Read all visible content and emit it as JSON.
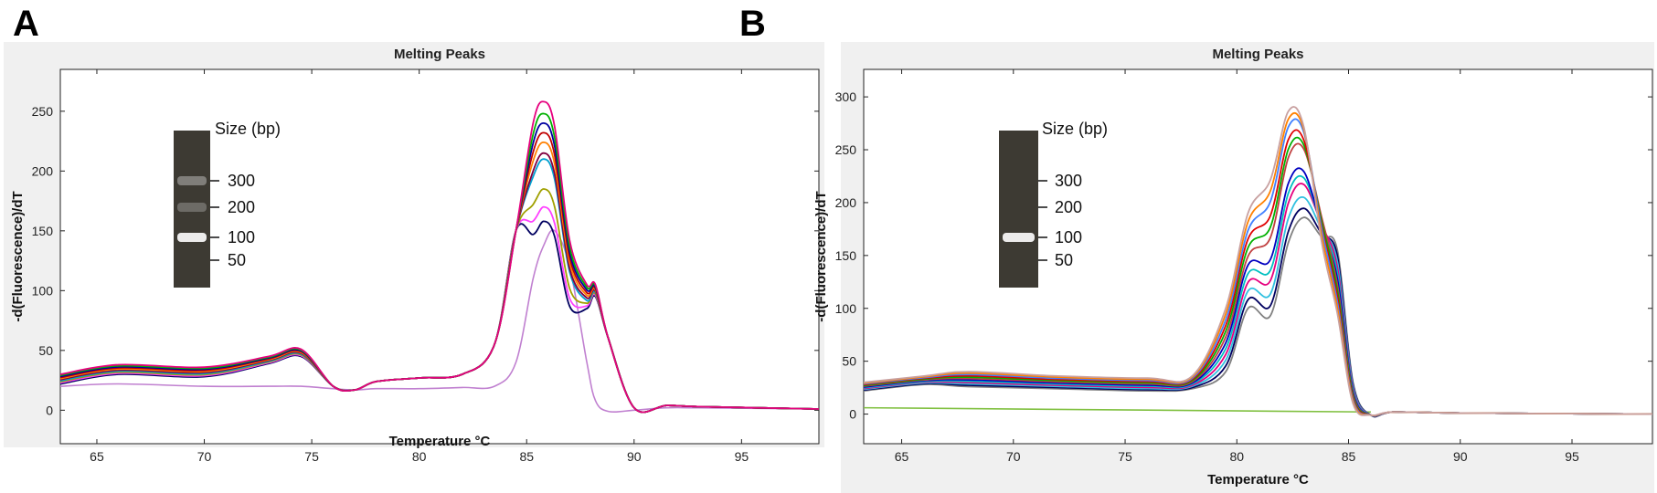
{
  "panels": [
    {
      "letter": "A"
    },
    {
      "letter": "B"
    }
  ],
  "chart_data": [
    {
      "type": "line",
      "title": "Melting Peaks",
      "xlabel": "Temperature °C",
      "ylabel": "-d(Fluorescence)/dT",
      "xlim": [
        63.3,
        98.6
      ],
      "ylim": [
        -28,
        285
      ],
      "xticks": [
        65,
        70,
        75,
        80,
        85,
        90,
        95
      ],
      "yticks": [
        0,
        50,
        100,
        150,
        200,
        250
      ],
      "x": [
        63.3,
        66,
        70,
        73,
        74.5,
        76,
        77,
        78,
        80,
        82,
        83.5,
        84.5,
        85.3,
        85.8,
        86.3,
        87,
        87.8,
        88.2,
        88.8,
        90,
        91.5,
        93,
        98.6
      ],
      "series": [
        {
          "color": "#e6007e",
          "peak": 258
        },
        {
          "color": "#00b000",
          "peak": 248
        },
        {
          "color": "#0000a0",
          "peak": 240
        },
        {
          "color": "#c00000",
          "peak": 232
        },
        {
          "color": "#ff8000",
          "peak": 224
        },
        {
          "color": "#800040",
          "peak": 215
        },
        {
          "color": "#00a0d0",
          "peak": 210
        },
        {
          "color": "#a0a000",
          "peak": 185
        },
        {
          "color": "#ff40ff",
          "peak": 170
        },
        {
          "color": "#000060",
          "peak": 158
        }
      ],
      "outlier": {
        "color": "#c080d0",
        "peak": 150
      },
      "gel_inset": {
        "title": "Size (bp)",
        "markers": [
          "300",
          "200",
          "100",
          "50"
        ],
        "bands": [
          {
            "intensity": 0.35,
            "label_index": 0
          },
          {
            "intensity": 0.25,
            "label_index": 1
          },
          {
            "intensity": 0.9,
            "label_index": 2
          }
        ]
      }
    },
    {
      "type": "line",
      "title": "Melting Peaks",
      "xlabel": "Temperature °C",
      "ylabel": "-d(Fluorescence)/dT",
      "xlim": [
        63.3,
        98.6
      ],
      "ylim": [
        -28,
        326
      ],
      "xticks": [
        65,
        70,
        75,
        80,
        85,
        90,
        95
      ],
      "yticks": [
        0,
        50,
        100,
        150,
        200,
        250,
        300
      ],
      "x": [
        63.3,
        66,
        68,
        72,
        76,
        78,
        79.5,
        80.5,
        81.5,
        82.3,
        83,
        83.8,
        84.5,
        85.2,
        86,
        87,
        90,
        98.6
      ],
      "series": [
        {
          "color": "#c8a0a0",
          "peak": 295
        },
        {
          "color": "#ff8000",
          "peak": 290
        },
        {
          "color": "#4080ff",
          "peak": 285
        },
        {
          "color": "#e00000",
          "peak": 275
        },
        {
          "color": "#00b000",
          "peak": 268
        },
        {
          "color": "#c04040",
          "peak": 262
        },
        {
          "color": "#0000c0",
          "peak": 238
        },
        {
          "color": "#00c0c0",
          "peak": 230
        },
        {
          "color": "#e6007e",
          "peak": 222
        },
        {
          "color": "#30c0e0",
          "peak": 208
        },
        {
          "color": "#000060",
          "peak": 196
        },
        {
          "color": "#808080",
          "peak": 186
        }
      ],
      "flat_line": {
        "color": "#80c040",
        "value_start": 6,
        "value_end": 2
      },
      "gel_inset": {
        "title": "Size (bp)",
        "markers": [
          "300",
          "200",
          "100",
          "50"
        ],
        "bands": [
          {
            "intensity": 0.9,
            "label_index": 2
          }
        ]
      }
    }
  ]
}
